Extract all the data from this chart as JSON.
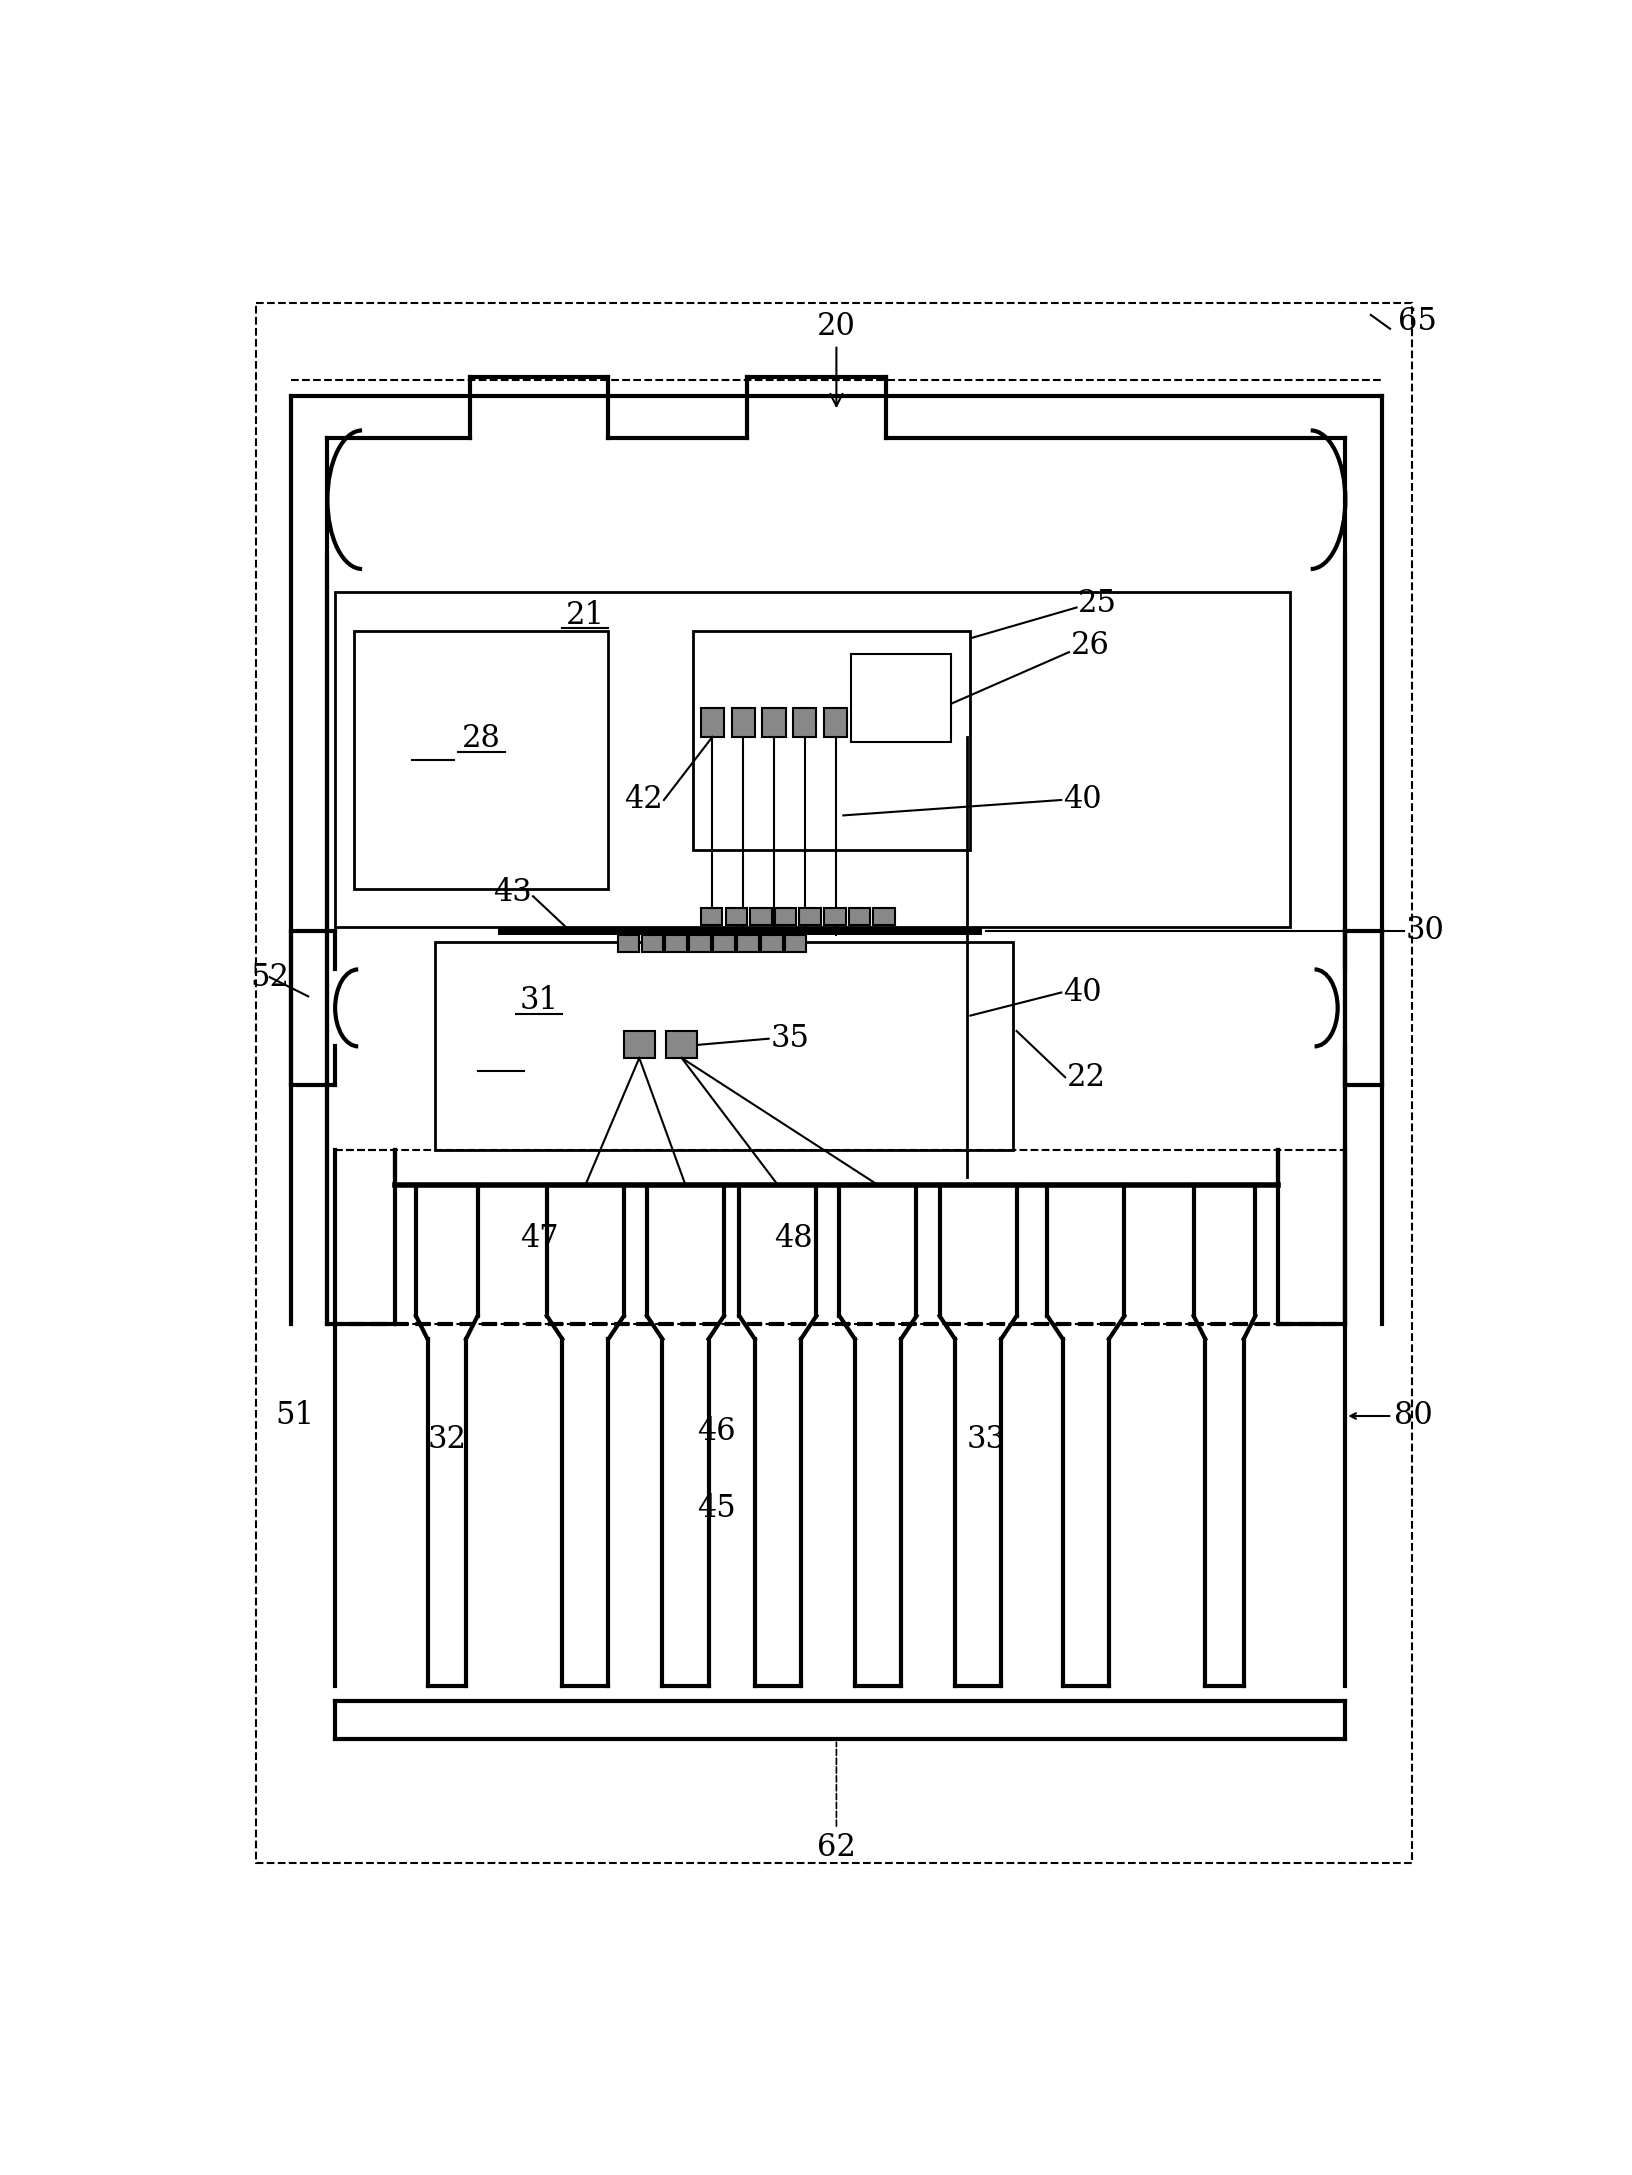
{
  "bg_color": "#ffffff",
  "lc": "#000000",
  "fig_width": 16.32,
  "fig_height": 21.75,
  "dpi": 100
}
